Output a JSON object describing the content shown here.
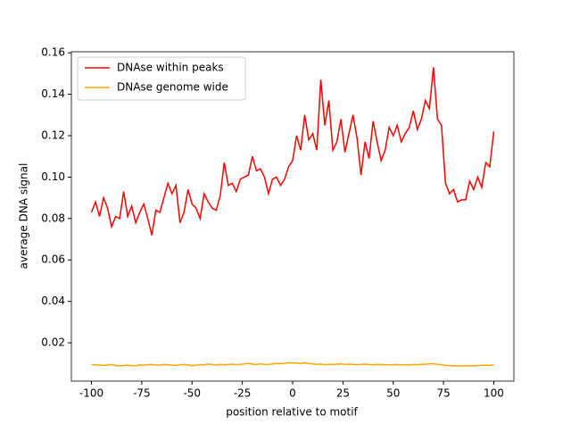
{
  "chart_data": {
    "type": "line",
    "xlabel": "position relative to motif",
    "ylabel": "average DNA signal",
    "x": [
      -100,
      -98,
      -96,
      -94,
      -92,
      -90,
      -88,
      -86,
      -84,
      -82,
      -80,
      -78,
      -76,
      -74,
      -72,
      -70,
      -68,
      -66,
      -64,
      -62,
      -60,
      -58,
      -56,
      -54,
      -52,
      -50,
      -48,
      -46,
      -44,
      -42,
      -40,
      -38,
      -36,
      -34,
      -32,
      -30,
      -28,
      -26,
      -24,
      -22,
      -20,
      -18,
      -16,
      -14,
      -12,
      -10,
      -8,
      -6,
      -4,
      -2,
      0,
      2,
      4,
      6,
      8,
      10,
      12,
      14,
      16,
      18,
      20,
      22,
      24,
      26,
      28,
      30,
      32,
      34,
      36,
      38,
      40,
      42,
      44,
      46,
      48,
      50,
      52,
      54,
      56,
      58,
      60,
      62,
      64,
      66,
      68,
      70,
      72,
      74,
      76,
      78,
      80,
      82,
      84,
      86,
      88,
      90,
      92,
      94,
      96,
      98,
      100
    ],
    "series": [
      {
        "name": "DNAse within peaks",
        "color": "#ff0000",
        "values": [
          0.083,
          0.088,
          0.081,
          0.09,
          0.085,
          0.076,
          0.081,
          0.08,
          0.093,
          0.081,
          0.086,
          0.078,
          0.083,
          0.087,
          0.08,
          0.072,
          0.084,
          0.083,
          0.09,
          0.097,
          0.092,
          0.096,
          0.078,
          0.083,
          0.094,
          0.087,
          0.085,
          0.08,
          0.092,
          0.088,
          0.085,
          0.084,
          0.091,
          0.107,
          0.096,
          0.097,
          0.093,
          0.099,
          0.1,
          0.101,
          0.11,
          0.103,
          0.104,
          0.1,
          0.092,
          0.099,
          0.1,
          0.096,
          0.099,
          0.105,
          0.108,
          0.12,
          0.113,
          0.13,
          0.118,
          0.121,
          0.113,
          0.147,
          0.125,
          0.137,
          0.113,
          0.117,
          0.128,
          0.112,
          0.121,
          0.13,
          0.119,
          0.101,
          0.117,
          0.109,
          0.127,
          0.117,
          0.108,
          0.113,
          0.124,
          0.12,
          0.125,
          0.117,
          0.121,
          0.124,
          0.132,
          0.123,
          0.128,
          0.137,
          0.133,
          0.153,
          0.128,
          0.125,
          0.097,
          0.092,
          0.094,
          0.088,
          0.089,
          0.089,
          0.098,
          0.094,
          0.1,
          0.095,
          0.107,
          0.105,
          0.122
        ]
      },
      {
        "name": "DNAse genome wide",
        "color": "#ffa500",
        "values": [
          0.0095,
          0.0093,
          0.0092,
          0.0091,
          0.0093,
          0.0095,
          0.0091,
          0.0089,
          0.009,
          0.0092,
          0.009,
          0.0089,
          0.0093,
          0.0092,
          0.0094,
          0.0095,
          0.0093,
          0.0092,
          0.0095,
          0.0094,
          0.0092,
          0.0091,
          0.0094,
          0.0096,
          0.0093,
          0.009,
          0.0092,
          0.0094,
          0.0093,
          0.0098,
          0.0095,
          0.0093,
          0.0096,
          0.0094,
          0.0095,
          0.0097,
          0.0094,
          0.0096,
          0.0098,
          0.0101,
          0.0097,
          0.0095,
          0.0098,
          0.0096,
          0.0095,
          0.0098,
          0.01,
          0.0099,
          0.0101,
          0.0104,
          0.0103,
          0.0102,
          0.01,
          0.0104,
          0.01,
          0.0098,
          0.0096,
          0.0097,
          0.0094,
          0.0096,
          0.0095,
          0.0097,
          0.0098,
          0.0095,
          0.0097,
          0.0096,
          0.0094,
          0.0096,
          0.0097,
          0.0095,
          0.0094,
          0.0096,
          0.0095,
          0.0094,
          0.0093,
          0.0094,
          0.0095,
          0.0093,
          0.0094,
          0.0093,
          0.0095,
          0.0094,
          0.0096,
          0.0097,
          0.0098,
          0.0099,
          0.0096,
          0.0094,
          0.0091,
          0.009,
          0.0089,
          0.0089,
          0.0088,
          0.0089,
          0.009,
          0.0089,
          0.009,
          0.0091,
          0.0092,
          0.0091,
          0.0093
        ]
      }
    ],
    "xlim": [
      -110,
      110
    ],
    "xticks": [
      -100,
      -75,
      -50,
      -25,
      0,
      25,
      50,
      75,
      100
    ],
    "ylim": [
      0.0015,
      0.1605
    ],
    "yticks": [
      0.02,
      0.04,
      0.06,
      0.08,
      {
        "value": 0.1,
        "label": "0.10"
      },
      0.12,
      0.14,
      0.16
    ],
    "legend": "upper left"
  }
}
